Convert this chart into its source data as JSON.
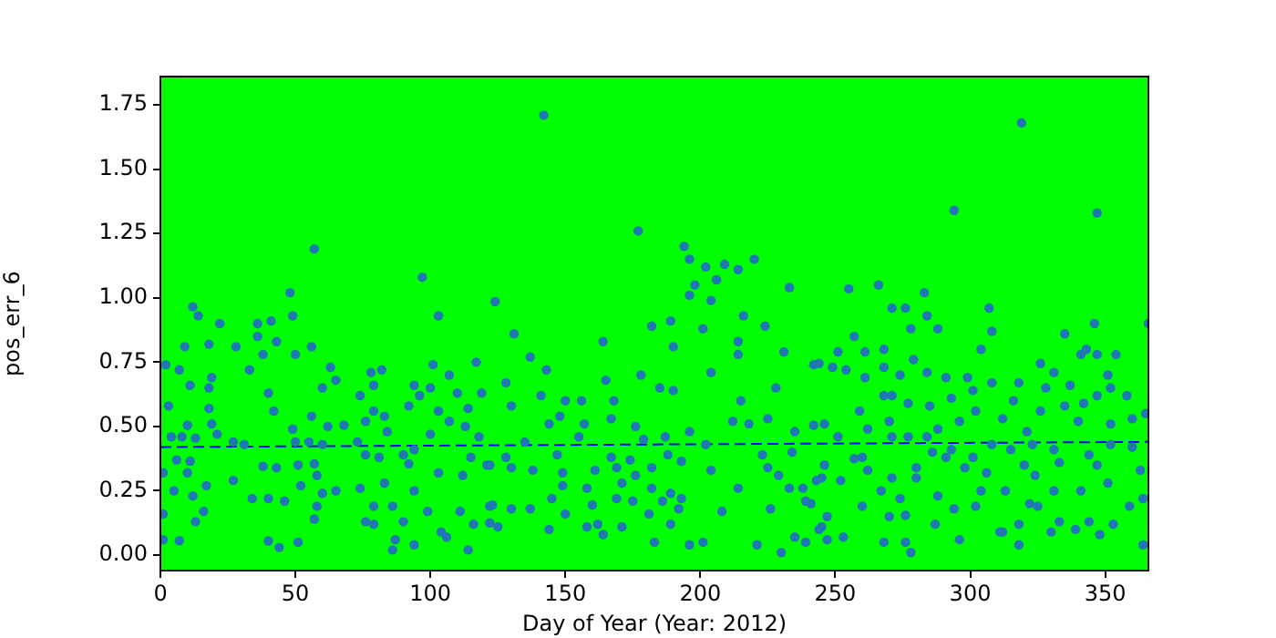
{
  "chart_data": {
    "type": "scatter",
    "xlabel": "Day of Year (Year: 2012)",
    "ylabel": "pos_err_6",
    "xlim": [
      0,
      366
    ],
    "ylim": [
      -0.06,
      1.86
    ],
    "xticks": [
      0,
      50,
      100,
      150,
      200,
      250,
      300,
      350
    ],
    "yticks": [
      {
        "value": 0,
        "label": "0.00"
      },
      {
        "value": 0.25,
        "label": "0.25"
      },
      {
        "value": 0.5,
        "label": "0.50"
      },
      {
        "value": 0.75,
        "label": "0.75"
      },
      {
        "value": 1,
        "label": "1.00"
      },
      {
        "value": 1.25,
        "label": "1.25"
      },
      {
        "value": 1.5,
        "label": "1.50"
      },
      {
        "value": 1.75,
        "label": "1.75"
      }
    ],
    "grid": false,
    "legend": false,
    "marker": "circle",
    "series": [
      {
        "type": "scatter",
        "color": "#1f77b4",
        "x": [
          57,
          97,
          48,
          103,
          12,
          14,
          22,
          36,
          41,
          49,
          36,
          43,
          18,
          28,
          9,
          38,
          50,
          56,
          2,
          7,
          33,
          63,
          65,
          78,
          82,
          79,
          101,
          107,
          117,
          124,
          11,
          18,
          19,
          40,
          60,
          74,
          94,
          96,
          100,
          110,
          119,
          3,
          18,
          42,
          56,
          79,
          83,
          92,
          103,
          114,
          10,
          19,
          62,
          68,
          76,
          107,
          113,
          49,
          4,
          8,
          13,
          21,
          27,
          31,
          50,
          55,
          60,
          73,
          84,
          94,
          100,
          118,
          6,
          11,
          38,
          51,
          57,
          76,
          81,
          90,
          92,
          103,
          115,
          121,
          1,
          10,
          17,
          27,
          43,
          52,
          58,
          65,
          74,
          83,
          94,
          112,
          5,
          12,
          1,
          16,
          34,
          40,
          46,
          58,
          60,
          79,
          86,
          99,
          111,
          122,
          13,
          7,
          1,
          40,
          51,
          44,
          57,
          76,
          87,
          86,
          94,
          104,
          106,
          114,
          116,
          79,
          90,
          142,
          177,
          194,
          196,
          202,
          206,
          209,
          214,
          220,
          233,
          198,
          196,
          204,
          216,
          189,
          182,
          201,
          224,
          214,
          164,
          131,
          137,
          143,
          190,
          214,
          231,
          242,
          204,
          178,
          165,
          128,
          141,
          150,
          185,
          190,
          228,
          215,
          130,
          156,
          168,
          148,
          157,
          167,
          176,
          196,
          212,
          218,
          225,
          235,
          246,
          135,
          144,
          155,
          179,
          187,
          202,
          223,
          234,
          128,
          147,
          167,
          174,
          188,
          193,
          122,
          130,
          138,
          149,
          161,
          169,
          182,
          204,
          225,
          245,
          145,
          149,
          158,
          171,
          176,
          182,
          189,
          193,
          214,
          229,
          233,
          238,
          123,
          130,
          137,
          150,
          160,
          169,
          175,
          181,
          186,
          192,
          208,
          226,
          239,
          122,
          125,
          144,
          158,
          162,
          171,
          189,
          164,
          183,
          196,
          201,
          221,
          230,
          235,
          239,
          245,
          319,
          294,
          347,
          255,
          266,
          283,
          271,
          276,
          307,
          284,
          346,
          366,
          257,
          278,
          288,
          335,
          268,
          304,
          308,
          244,
          251,
          261,
          249,
          254,
          268,
          279,
          341,
          343,
          347,
          354,
          261,
          274,
          284,
          291,
          299,
          308,
          318,
          326,
          331,
          337,
          351,
          352,
          268,
          301,
          328,
          259,
          271,
          293,
          277,
          285,
          302,
          316,
          347,
          342,
          358,
          365,
          242,
          251,
          262,
          270,
          288,
          296,
          312,
          321,
          326,
          335,
          340,
          352,
          360,
          257,
          260,
          271,
          277,
          284,
          286,
          293,
          301,
          308,
          315,
          323,
          331,
          344,
          352,
          360,
          246,
          262,
          271,
          280,
          291,
          298,
          306,
          320,
          324,
          333,
          347,
          363,
          243,
          252,
          267,
          274,
          280,
          288,
          294,
          304,
          313,
          322,
          331,
          341,
          351,
          359,
          241,
          247,
          260,
          270,
          276,
          287,
          302,
          311,
          318,
          325,
          333,
          344,
          353,
          364,
          247,
          253,
          268,
          276,
          278,
          296,
          312,
          318,
          330,
          339,
          348,
          364,
          244
        ],
        "values": [
          1.19,
          1.08,
          1.02,
          0.93,
          0.965,
          0.93,
          0.9,
          0.9,
          0.91,
          0.93,
          0.85,
          0.83,
          0.82,
          0.81,
          0.81,
          0.78,
          0.78,
          0.81,
          0.74,
          0.72,
          0.72,
          0.73,
          0.68,
          0.71,
          0.72,
          0.66,
          0.74,
          0.7,
          0.75,
          0.985,
          0.66,
          0.65,
          0.69,
          0.63,
          0.65,
          0.62,
          0.66,
          0.62,
          0.65,
          0.63,
          0.63,
          0.58,
          0.57,
          0.56,
          0.54,
          0.56,
          0.54,
          0.58,
          0.56,
          0.57,
          0.505,
          0.51,
          0.5,
          0.505,
          0.52,
          0.52,
          0.5,
          0.49,
          0.46,
          0.46,
          0.455,
          0.47,
          0.44,
          0.43,
          0.44,
          0.44,
          0.43,
          0.44,
          0.48,
          0.41,
          0.47,
          0.46,
          0.37,
          0.365,
          0.345,
          0.35,
          0.355,
          0.39,
          0.38,
          0.39,
          0.355,
          0.32,
          0.38,
          0.35,
          0.32,
          0.32,
          0.27,
          0.29,
          0.34,
          0.27,
          0.31,
          0.25,
          0.26,
          0.28,
          0.25,
          0.31,
          0.25,
          0.23,
          0.16,
          0.17,
          0.22,
          0.22,
          0.21,
          0.19,
          0.24,
          0.19,
          0.19,
          0.17,
          0.17,
          0.19,
          0.13,
          0.056,
          0.06,
          0.055,
          0.05,
          0.03,
          0.14,
          0.13,
          0.06,
          0.02,
          0.04,
          0.09,
          0.07,
          0.02,
          0.12,
          0.12,
          0.13,
          1.71,
          1.26,
          1.2,
          1.15,
          1.12,
          1.07,
          1.13,
          1.11,
          1.15,
          1.04,
          1.05,
          1.01,
          0.99,
          0.93,
          0.91,
          0.89,
          0.88,
          0.89,
          0.83,
          0.83,
          0.86,
          0.77,
          0.72,
          0.81,
          0.78,
          0.79,
          0.74,
          0.71,
          0.7,
          0.68,
          0.67,
          0.62,
          0.6,
          0.65,
          0.64,
          0.65,
          0.6,
          0.58,
          0.6,
          0.6,
          0.54,
          0.51,
          0.53,
          0.5,
          0.48,
          0.52,
          0.51,
          0.53,
          0.48,
          0.51,
          0.44,
          0.51,
          0.46,
          0.45,
          0.46,
          0.43,
          0.39,
          0.4,
          0.38,
          0.39,
          0.38,
          0.37,
          0.39,
          0.365,
          0.35,
          0.34,
          0.33,
          0.32,
          0.33,
          0.34,
          0.34,
          0.33,
          0.34,
          0.3,
          0.22,
          0.27,
          0.26,
          0.28,
          0.31,
          0.26,
          0.24,
          0.22,
          0.26,
          0.31,
          0.26,
          0.26,
          0.195,
          0.18,
          0.18,
          0.16,
          0.195,
          0.22,
          0.21,
          0.16,
          0.21,
          0.18,
          0.17,
          0.18,
          0.21,
          0.125,
          0.11,
          0.1,
          0.11,
          0.12,
          0.11,
          0.12,
          0.08,
          0.05,
          0.04,
          0.05,
          0.04,
          0.01,
          0.07,
          0.05,
          0.11,
          1.68,
          1.34,
          1.33,
          1.035,
          1.05,
          1.02,
          0.96,
          0.96,
          0.96,
          0.93,
          0.9,
          0.9,
          0.85,
          0.88,
          0.88,
          0.86,
          0.8,
          0.8,
          0.87,
          0.745,
          0.79,
          0.79,
          0.73,
          0.72,
          0.73,
          0.76,
          0.78,
          0.8,
          0.78,
          0.78,
          0.69,
          0.7,
          0.71,
          0.69,
          0.69,
          0.67,
          0.67,
          0.745,
          0.71,
          0.66,
          0.7,
          0.65,
          0.62,
          0.64,
          0.65,
          0.56,
          0.62,
          0.61,
          0.59,
          0.58,
          0.56,
          0.6,
          0.62,
          0.59,
          0.62,
          0.55,
          0.505,
          0.46,
          0.49,
          0.52,
          0.49,
          0.52,
          0.53,
          0.48,
          0.56,
          0.58,
          0.52,
          0.51,
          0.53,
          0.375,
          0.38,
          0.46,
          0.46,
          0.46,
          0.4,
          0.41,
          0.38,
          0.43,
          0.41,
          0.43,
          0.41,
          0.39,
          0.43,
          0.42,
          0.35,
          0.33,
          0.3,
          0.34,
          0.38,
          0.34,
          0.32,
          0.35,
          0.31,
          0.36,
          0.35,
          0.33,
          0.29,
          0.29,
          0.25,
          0.22,
          0.3,
          0.23,
          0.18,
          0.25,
          0.25,
          0.2,
          0.25,
          0.25,
          0.28,
          0.19,
          0.2,
          0.15,
          0.19,
          0.15,
          0.155,
          0.12,
          0.19,
          0.09,
          0.12,
          0.19,
          0.13,
          0.13,
          0.12,
          0.22,
          0.06,
          0.07,
          0.05,
          0.05,
          0.01,
          0.06,
          0.09,
          0.04,
          0.09,
          0.1,
          0.08,
          0.04,
          0.1
        ]
      },
      {
        "type": "line",
        "color": "#0000ff",
        "line_style": "dashed",
        "marker": "none",
        "x": [
          0,
          366
        ],
        "values": [
          0.42,
          0.44
        ]
      }
    ]
  }
}
